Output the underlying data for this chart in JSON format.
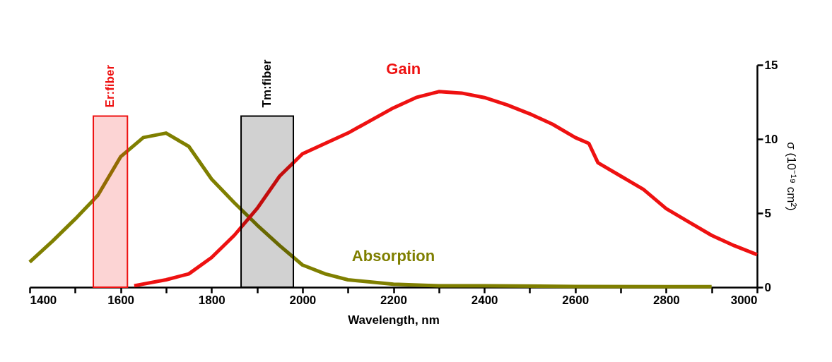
{
  "chart_data": {
    "type": "line",
    "xlabel": "Wavelength, nm",
    "ylabel": "σ (10⁻¹⁹ cm²)",
    "xlim": [
      1400,
      3000
    ],
    "ylim": [
      0,
      15
    ],
    "xticks": [
      1400,
      {
        "value": 1500,
        "label": null
      },
      1600,
      {
        "value": 1700,
        "label": null
      },
      1800,
      {
        "value": 1900,
        "label": null
      },
      2000,
      {
        "value": 2100,
        "label": null
      },
      2200,
      {
        "value": 2300,
        "label": null
      },
      2400,
      {
        "value": 2500,
        "label": null
      },
      2600,
      {
        "value": 2700,
        "label": null
      },
      2800,
      {
        "value": 2900,
        "label": null
      },
      3000
    ],
    "yticks": [
      0,
      5,
      10,
      15
    ],
    "grid": false,
    "legend": false,
    "line_style": "solid",
    "marker": "none",
    "series": [
      {
        "name": "Absorption",
        "color": "#7f7f00",
        "x": [
          1400,
          1450,
          1500,
          1550,
          1600,
          1650,
          1700,
          1750,
          1800,
          1850,
          1900,
          1950,
          2000,
          2050,
          2100,
          2200,
          2300,
          2400,
          2600,
          2800,
          2900
        ],
        "values": [
          1.7,
          3.1,
          4.6,
          6.2,
          8.8,
          10.1,
          10.4,
          9.5,
          7.3,
          5.7,
          4.2,
          2.8,
          1.5,
          0.9,
          0.5,
          0.2,
          0.1,
          0.1,
          0.05,
          0.03,
          0.03
        ]
      },
      {
        "name": "Gain",
        "color": "#ee1111",
        "x": [
          1630,
          1700,
          1750,
          1800,
          1850,
          1900,
          1950,
          2000,
          2100,
          2200,
          2250,
          2300,
          2350,
          2400,
          2450,
          2500,
          2550,
          2600,
          2630,
          2650,
          2700,
          2750,
          2800,
          2850,
          2900,
          2950,
          3000
        ],
        "values": [
          0.1,
          0.5,
          0.9,
          2.0,
          3.5,
          5.3,
          7.5,
          9.0,
          10.4,
          12.1,
          12.8,
          13.2,
          13.1,
          12.8,
          12.3,
          11.7,
          11.0,
          10.1,
          9.7,
          8.4,
          7.5,
          6.6,
          5.3,
          4.4,
          3.5,
          2.8,
          2.2
        ]
      }
    ],
    "bands": [
      {
        "axis": "x",
        "from": 1540,
        "to": 1615,
        "label": "Er:fiber",
        "color": "#ee1111"
      },
      {
        "axis": "x",
        "from": 1865,
        "to": 1980,
        "label": "Tm:fiber",
        "color": "#000000"
      }
    ]
  }
}
